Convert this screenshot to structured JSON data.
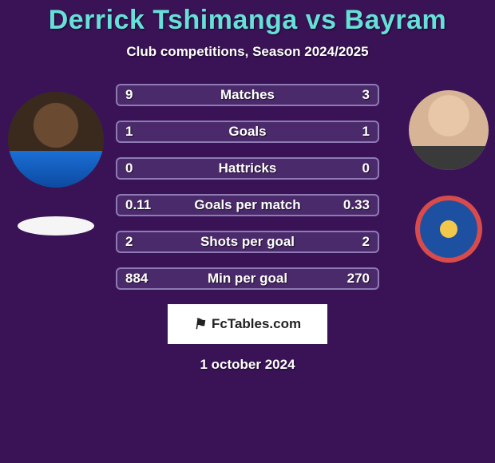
{
  "colors": {
    "background": "#3a1357",
    "title": "#66e0d8",
    "text": "#ffffff",
    "bar_border": "#8e7bb3",
    "bar_fill": "#4a2a6a"
  },
  "title": "Derrick Tshimanga vs Bayram",
  "subtitle": "Club competitions, Season 2024/2025",
  "rows": [
    {
      "left": "9",
      "label": "Matches",
      "right": "3"
    },
    {
      "left": "1",
      "label": "Goals",
      "right": "1"
    },
    {
      "left": "0",
      "label": "Hattricks",
      "right": "0"
    },
    {
      "left": "0.11",
      "label": "Goals per match",
      "right": "0.33"
    },
    {
      "left": "2",
      "label": "Shots per goal",
      "right": "2"
    },
    {
      "left": "884",
      "label": "Min per goal",
      "right": "270"
    }
  ],
  "footer_brand": "FcTables.com",
  "date": "1 october 2024"
}
